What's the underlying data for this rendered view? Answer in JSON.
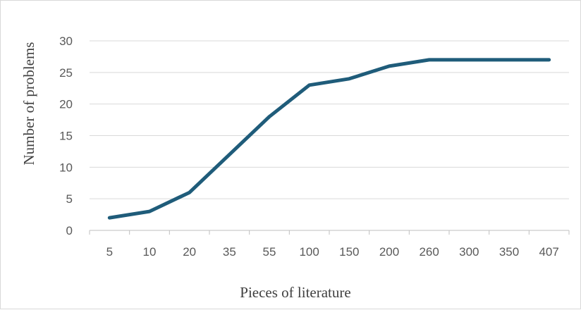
{
  "chart_data": {
    "type": "line",
    "title": "",
    "xlabel": "Pieces of literature",
    "ylabel": "Number of problems",
    "categories": [
      "5",
      "10",
      "20",
      "35",
      "55",
      "100",
      "150",
      "200",
      "260",
      "300",
      "350",
      "407"
    ],
    "series": [
      {
        "values": [
          2,
          3,
          6,
          12,
          18,
          23,
          24,
          26,
          27,
          27,
          27,
          27
        ]
      }
    ],
    "ylim": [
      0,
      30
    ],
    "yticks": [
      0,
      5,
      10,
      15,
      20,
      25,
      30
    ],
    "grid": "horizontal",
    "legend": "none",
    "colors": {
      "line": "#1f5c7a",
      "grid": "#d9d9d9",
      "axis": "#bfbfbf",
      "text": "#595959"
    }
  }
}
